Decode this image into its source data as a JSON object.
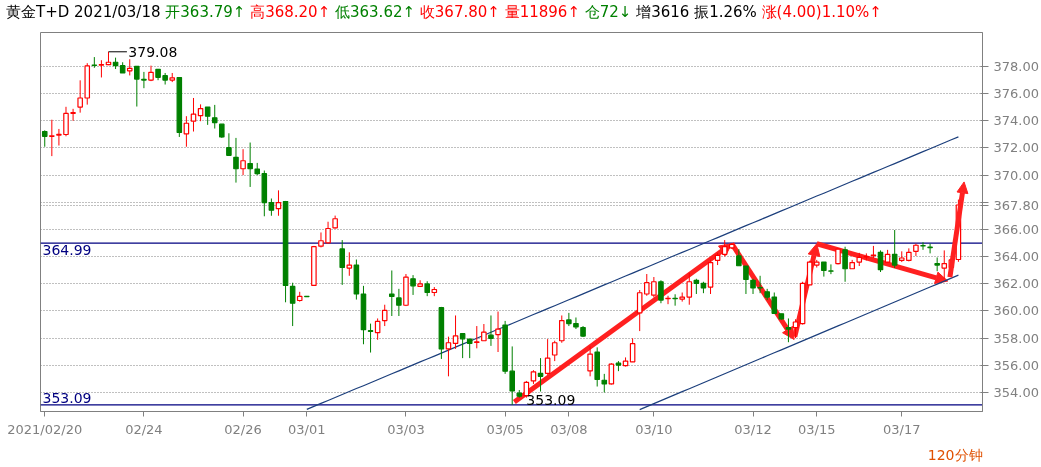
{
  "chart_data": {
    "type": "candlestick",
    "title": "黄金T+D 2021/03/18",
    "annotations": [
      "开363.79↑",
      "高368.20↑",
      "低363.62↑",
      "收367.80↑",
      "量11896↑",
      "仓72↓",
      "增3616",
      "振1.26%",
      "涨(4.00)1.10%↑",
      "120分钟",
      "379.08",
      {
        "text": "353.09",
        "y": 353.09
      }
    ],
    "categories": [
      "2021/02/20",
      null,
      null,
      null,
      null,
      null,
      null,
      null,
      null,
      null,
      null,
      null,
      null,
      null,
      "02/24",
      null,
      null,
      null,
      null,
      null,
      null,
      null,
      null,
      null,
      null,
      null,
      null,
      null,
      "02/26",
      null,
      null,
      null,
      null,
      null,
      null,
      null,
      null,
      "03/01",
      null,
      null,
      null,
      null,
      null,
      null,
      null,
      null,
      null,
      null,
      null,
      null,
      null,
      "03/03",
      null,
      null,
      null,
      null,
      null,
      null,
      null,
      null,
      null,
      null,
      null,
      null,
      null,
      "03/05",
      null,
      null,
      null,
      null,
      null,
      null,
      null,
      null,
      "03/08",
      null,
      null,
      null,
      null,
      null,
      null,
      null,
      null,
      null,
      null,
      null,
      "03/10",
      null,
      null,
      null,
      null,
      null,
      null,
      null,
      null,
      null,
      null,
      null,
      null,
      null,
      "03/12",
      null,
      null,
      null,
      null,
      null,
      null,
      null,
      null,
      "03/15",
      null,
      null,
      null,
      null,
      null,
      null,
      null,
      null,
      null,
      null,
      null,
      "03/17",
      null,
      null,
      null,
      null,
      null,
      null,
      null,
      null
    ],
    "ohlc": [
      [
        373.21,
        373.3,
        372.09,
        372.86
      ],
      [
        372.86,
        374.08,
        371.4,
        372.9
      ],
      [
        372.95,
        373.4,
        372.18,
        373.0
      ],
      [
        372.99,
        375.03,
        372.86,
        374.54
      ],
      [
        374.55,
        374.88,
        374.0,
        374.6
      ],
      [
        375.01,
        376.98,
        374.6,
        375.68
      ],
      [
        375.68,
        378.24,
        375.19,
        378.04
      ],
      [
        378.1,
        378.69,
        377.9,
        378.07
      ],
      [
        378.1,
        378.46,
        377.19,
        378.13
      ],
      [
        378.13,
        379.08,
        378.1,
        378.31
      ],
      [
        378.31,
        378.65,
        377.81,
        378.06
      ],
      [
        378.06,
        378.31,
        377.52,
        377.52
      ],
      [
        377.68,
        378.53,
        377.34,
        377.86
      ],
      [
        378.01,
        378.01,
        375.05,
        377.07
      ],
      [
        377.05,
        377.6,
        376.4,
        377.0
      ],
      [
        377.0,
        378.06,
        376.92,
        377.57
      ],
      [
        377.79,
        377.8,
        376.99,
        377.2
      ],
      [
        377.32,
        377.52,
        376.67,
        377.0
      ],
      [
        377.0,
        377.52,
        376.85,
        377.16
      ],
      [
        377.18,
        377.18,
        372.81,
        373.14
      ],
      [
        373.03,
        374.34,
        372.09,
        373.82
      ],
      [
        373.97,
        375.68,
        373.21,
        374.49
      ],
      [
        374.38,
        375.21,
        373.97,
        374.9
      ],
      [
        375.01,
        375.01,
        373.7,
        374.34
      ],
      [
        374.22,
        375.17,
        373.43,
        373.87
      ],
      [
        373.75,
        373.75,
        372.74,
        372.81
      ],
      [
        372.02,
        373.08,
        371.46,
        371.46
      ],
      [
        371.31,
        372.74,
        369.45,
        370.47
      ],
      [
        370.47,
        371.91,
        370.0,
        371.06
      ],
      [
        370.85,
        372.4,
        369.13,
        370.47
      ],
      [
        370.45,
        370.9,
        370.0,
        370.11
      ],
      [
        370.11,
        370.34,
        366.97,
        367.98
      ],
      [
        367.98,
        368.28,
        367.01,
        367.42
      ],
      [
        367.53,
        368.88,
        367.01,
        367.98
      ],
      [
        368.05,
        368.1,
        360.64,
        361.88
      ],
      [
        361.81,
        362.08,
        358.89,
        360.57
      ],
      [
        360.77,
        361.41,
        360.69,
        361.07
      ],
      [
        361.08,
        361.08,
        361.06,
        361.06
      ],
      [
        361.88,
        364.79,
        361.86,
        364.73
      ],
      [
        364.77,
        365.78,
        364.68,
        365.17
      ],
      [
        365.02,
        366.57,
        364.99,
        366.07
      ],
      [
        366.12,
        367.02,
        366.07,
        366.79
      ],
      [
        364.57,
        365.22,
        361.92,
        363.2
      ],
      [
        363.16,
        364.32,
        362.59,
        363.38
      ],
      [
        363.38,
        363.79,
        360.84,
        361.25
      ],
      [
        361.25,
        361.85,
        357.55,
        358.62
      ],
      [
        358.55,
        359.07,
        356.94,
        358.5
      ],
      [
        358.4,
        359.45,
        357.88,
        359.23
      ],
      [
        359.29,
        360.46,
        358.89,
        360.05
      ],
      [
        361.25,
        362.98,
        359.63,
        361.07
      ],
      [
        360.96,
        361.63,
        359.63,
        360.42
      ],
      [
        360.42,
        362.72,
        360.36,
        362.49
      ],
      [
        362.37,
        362.64,
        361.18,
        361.85
      ],
      [
        361.81,
        362.26,
        361.76,
        361.99
      ],
      [
        361.99,
        362.19,
        361.09,
        361.36
      ],
      [
        361.36,
        361.76,
        361.09,
        361.58
      ],
      [
        360.24,
        360.3,
        356.47,
        357.21
      ],
      [
        357.21,
        358.11,
        355.19,
        357.66
      ],
      [
        357.61,
        359.67,
        357.21,
        358.17
      ],
      [
        358.33,
        358.33,
        356.53,
        357.95
      ],
      [
        357.93,
        357.93,
        356.53,
        357.61
      ],
      [
        357.68,
        358.89,
        357.25,
        357.72
      ],
      [
        357.81,
        359.04,
        357.79,
        358.44
      ],
      [
        358.22,
        359.67,
        357.43,
        357.99
      ],
      [
        358.26,
        359.96,
        356.98,
        358.67
      ],
      [
        358.96,
        359.27,
        355.37,
        355.57
      ],
      [
        355.57,
        357.39,
        353.09,
        354.11
      ],
      [
        353.95,
        354.18,
        353.62,
        353.73
      ],
      [
        353.77,
        354.85,
        353.62,
        354.74
      ],
      [
        354.85,
        355.64,
        354.63,
        355.52
      ],
      [
        355.41,
        356.53,
        354.07,
        355.19
      ],
      [
        355.41,
        357.93,
        355.3,
        356.53
      ],
      [
        356.76,
        357.81,
        356.31,
        357.66
      ],
      [
        357.81,
        359.67,
        357.66,
        359.29
      ],
      [
        359.34,
        359.86,
        358.89,
        359.07
      ],
      [
        359.07,
        359.52,
        358.67,
        358.82
      ],
      [
        358.78,
        358.89,
        358.08,
        358.15
      ],
      [
        355.59,
        357.39,
        355.19,
        356.83
      ],
      [
        356.98,
        357.32,
        354.44,
        354.96
      ],
      [
        354.9,
        355.37,
        354.0,
        354.63
      ],
      [
        354.63,
        356.16,
        354.58,
        356.09
      ],
      [
        356.16,
        356.31,
        355.57,
        356.02
      ],
      [
        355.97,
        356.58,
        355.91,
        356.31
      ],
      [
        356.26,
        357.99,
        356.24,
        357.59
      ],
      [
        359.86,
        361.54,
        358.52,
        361.34
      ],
      [
        361.25,
        362.72,
        361.12,
        362.08
      ],
      [
        361.16,
        362.5,
        361.0,
        362.15
      ],
      [
        362.15,
        362.26,
        360.57,
        360.8
      ],
      [
        360.9,
        361.12,
        360.5,
        360.93
      ],
      [
        360.93,
        361.23,
        360.39,
        360.9
      ],
      [
        360.87,
        361.36,
        360.69,
        361.02
      ],
      [
        361.02,
        362.82,
        360.46,
        362.15
      ],
      [
        362.26,
        362.37,
        361.25,
        362.03
      ],
      [
        362.03,
        362.15,
        361.31,
        361.7
      ],
      [
        361.76,
        363.76,
        361.25,
        363.56
      ],
      [
        363.72,
        364.28,
        363.38,
        364.1
      ],
      [
        364.17,
        365.22,
        364.01,
        364.73
      ],
      [
        364.64,
        365.0,
        364.57,
        364.91
      ],
      [
        364.05,
        364.55,
        363.33,
        363.33
      ],
      [
        363.31,
        363.31,
        361.25,
        362.32
      ],
      [
        362.26,
        362.37,
        361.25,
        361.7
      ],
      [
        361.72,
        362.59,
        361.31,
        361.7
      ],
      [
        361.41,
        361.63,
        360.8,
        361.02
      ],
      [
        361.02,
        361.36,
        359.79,
        359.83
      ],
      [
        359.79,
        359.79,
        359.36,
        359.41
      ],
      [
        358.78,
        359.45,
        357.7,
        358.67
      ],
      [
        358.78,
        359.39,
        358.0,
        359.19
      ],
      [
        359.07,
        362.15,
        359.0,
        362.03
      ],
      [
        361.92,
        363.7,
        361.92,
        363.6
      ],
      [
        363.38,
        363.76,
        363.2,
        363.6
      ],
      [
        363.6,
        363.6,
        362.53,
        362.98
      ],
      [
        362.95,
        363.43,
        362.71,
        362.93
      ],
      [
        363.49,
        364.61,
        363.43,
        364.55
      ],
      [
        364.5,
        364.73,
        362.15,
        363.11
      ],
      [
        363.11,
        363.76,
        363.11,
        363.56
      ],
      [
        363.6,
        364.28,
        363.31,
        363.94
      ],
      [
        363.98,
        364.24,
        363.72,
        364.01
      ],
      [
        364.08,
        364.79,
        363.9,
        364.12
      ],
      [
        364.32,
        364.46,
        362.87,
        363.04
      ],
      [
        363.6,
        364.5,
        363.56,
        364.17
      ],
      [
        364.17,
        365.96,
        363.16,
        363.38
      ],
      [
        363.72,
        364.39,
        363.6,
        363.9
      ],
      [
        363.72,
        364.61,
        363.65,
        364.32
      ],
      [
        364.39,
        364.95,
        364.05,
        364.84
      ],
      [
        364.81,
        365.06,
        364.5,
        364.79
      ],
      [
        364.7,
        364.95,
        364.24,
        364.66
      ],
      [
        363.49,
        363.94,
        362.93,
        363.38
      ],
      [
        363.16,
        364.46,
        362.37,
        363.49
      ],
      [
        363.2,
        364.05,
        363.2,
        363.76
      ],
      [
        363.79,
        368.2,
        363.62,
        367.8
      ]
    ],
    "series": [
      {
        "type": "line",
        "color": "#1c3f7c",
        "values": [
          null,
          null,
          null,
          null,
          null,
          null,
          null,
          null,
          null,
          null,
          null,
          null,
          null,
          null,
          null,
          null,
          null,
          null,
          null,
          null,
          null,
          null,
          null,
          null,
          null,
          null,
          null,
          null,
          null,
          null,
          null,
          null,
          null,
          null,
          null,
          null,
          null,
          352.76,
          352.98,
          353.2,
          353.41,
          353.63,
          353.85,
          354.07,
          354.29,
          354.5,
          354.72,
          354.94,
          355.16,
          355.38,
          355.59,
          355.81,
          356.03,
          356.25,
          356.47,
          356.68,
          356.9,
          357.12,
          357.34,
          357.56,
          357.77,
          357.99,
          358.21,
          358.43,
          358.65,
          358.86,
          359.08,
          359.3,
          359.52,
          359.74,
          359.95,
          360.17,
          360.39,
          360.61,
          360.83,
          361.04,
          361.26,
          361.48,
          361.7,
          361.92,
          362.13,
          362.35,
          362.57,
          362.79,
          363.01,
          363.22,
          363.44,
          363.66,
          363.88,
          364.1,
          364.31,
          364.53,
          364.75,
          364.97,
          365.19,
          365.4,
          365.62,
          365.84,
          366.06,
          366.28,
          366.49,
          366.71,
          366.93,
          367.15,
          367.37,
          367.58,
          367.8,
          368.02,
          368.24,
          368.46,
          368.67,
          368.89,
          369.11,
          369.33,
          369.55,
          369.76,
          369.98,
          370.2,
          370.42,
          370.64,
          370.85,
          371.07,
          371.29,
          371.51,
          371.73,
          371.94,
          372.16,
          372.38,
          372.6,
          372.82
        ]
      },
      {
        "type": "line",
        "color": "#1c3f7c",
        "values": [
          null,
          null,
          null,
          null,
          null,
          null,
          null,
          null,
          null,
          null,
          null,
          null,
          null,
          null,
          null,
          null,
          null,
          null,
          null,
          null,
          null,
          null,
          null,
          null,
          null,
          null,
          null,
          null,
          null,
          null,
          null,
          null,
          null,
          null,
          null,
          null,
          null,
          null,
          null,
          null,
          null,
          null,
          null,
          null,
          null,
          null,
          null,
          null,
          null,
          null,
          null,
          null,
          null,
          null,
          null,
          null,
          null,
          null,
          null,
          null,
          null,
          null,
          null,
          null,
          null,
          null,
          null,
          null,
          null,
          null,
          null,
          null,
          null,
          null,
          null,
          null,
          null,
          null,
          null,
          null,
          null,
          null,
          null,
          null,
          352.74,
          352.96,
          353.18,
          353.4,
          353.62,
          353.84,
          354.06,
          354.28,
          354.5,
          354.72,
          354.94,
          355.16,
          355.38,
          355.6,
          355.82,
          356.04,
          356.26,
          356.48,
          356.7,
          356.92,
          357.14,
          357.36,
          357.58,
          357.8,
          358.02,
          358.24,
          358.46,
          358.68,
          358.9,
          359.12,
          359.34,
          359.56,
          359.78,
          360.0,
          360.22,
          360.44,
          360.66,
          360.88,
          361.1,
          361.32,
          361.54,
          361.76,
          361.98,
          362.2,
          362.42,
          362.64
        ]
      }
    ],
    "ylim": [
      352.6,
      380.5
    ],
    "yticks": [
      {
        "value": 354,
        "label": "354.00"
      },
      {
        "value": 356,
        "label": "356.00"
      },
      {
        "value": 358,
        "label": "358.00"
      },
      {
        "value": 360,
        "label": "360.00"
      },
      {
        "value": 362,
        "label": "362.00"
      },
      {
        "value": 364,
        "label": "364.00"
      },
      {
        "value": 366,
        "label": "366.00"
      },
      {
        "value": 367.8,
        "label": "367.80"
      },
      {
        "value": 368,
        "label": null
      },
      {
        "value": 370,
        "label": "370.00"
      },
      {
        "value": 372,
        "label": "372.00"
      },
      {
        "value": 374,
        "label": "374.00"
      },
      {
        "value": 376,
        "label": "376.00"
      },
      {
        "value": 378,
        "label": "378.00"
      }
    ],
    "ref_lines": [
      {
        "axis": "y",
        "value": 364.99,
        "label": "364.99",
        "color": "#000080"
      },
      {
        "axis": "y",
        "value": 353.09,
        "label": "353.09",
        "color": "#000080"
      }
    ],
    "grid": "y"
  }
}
